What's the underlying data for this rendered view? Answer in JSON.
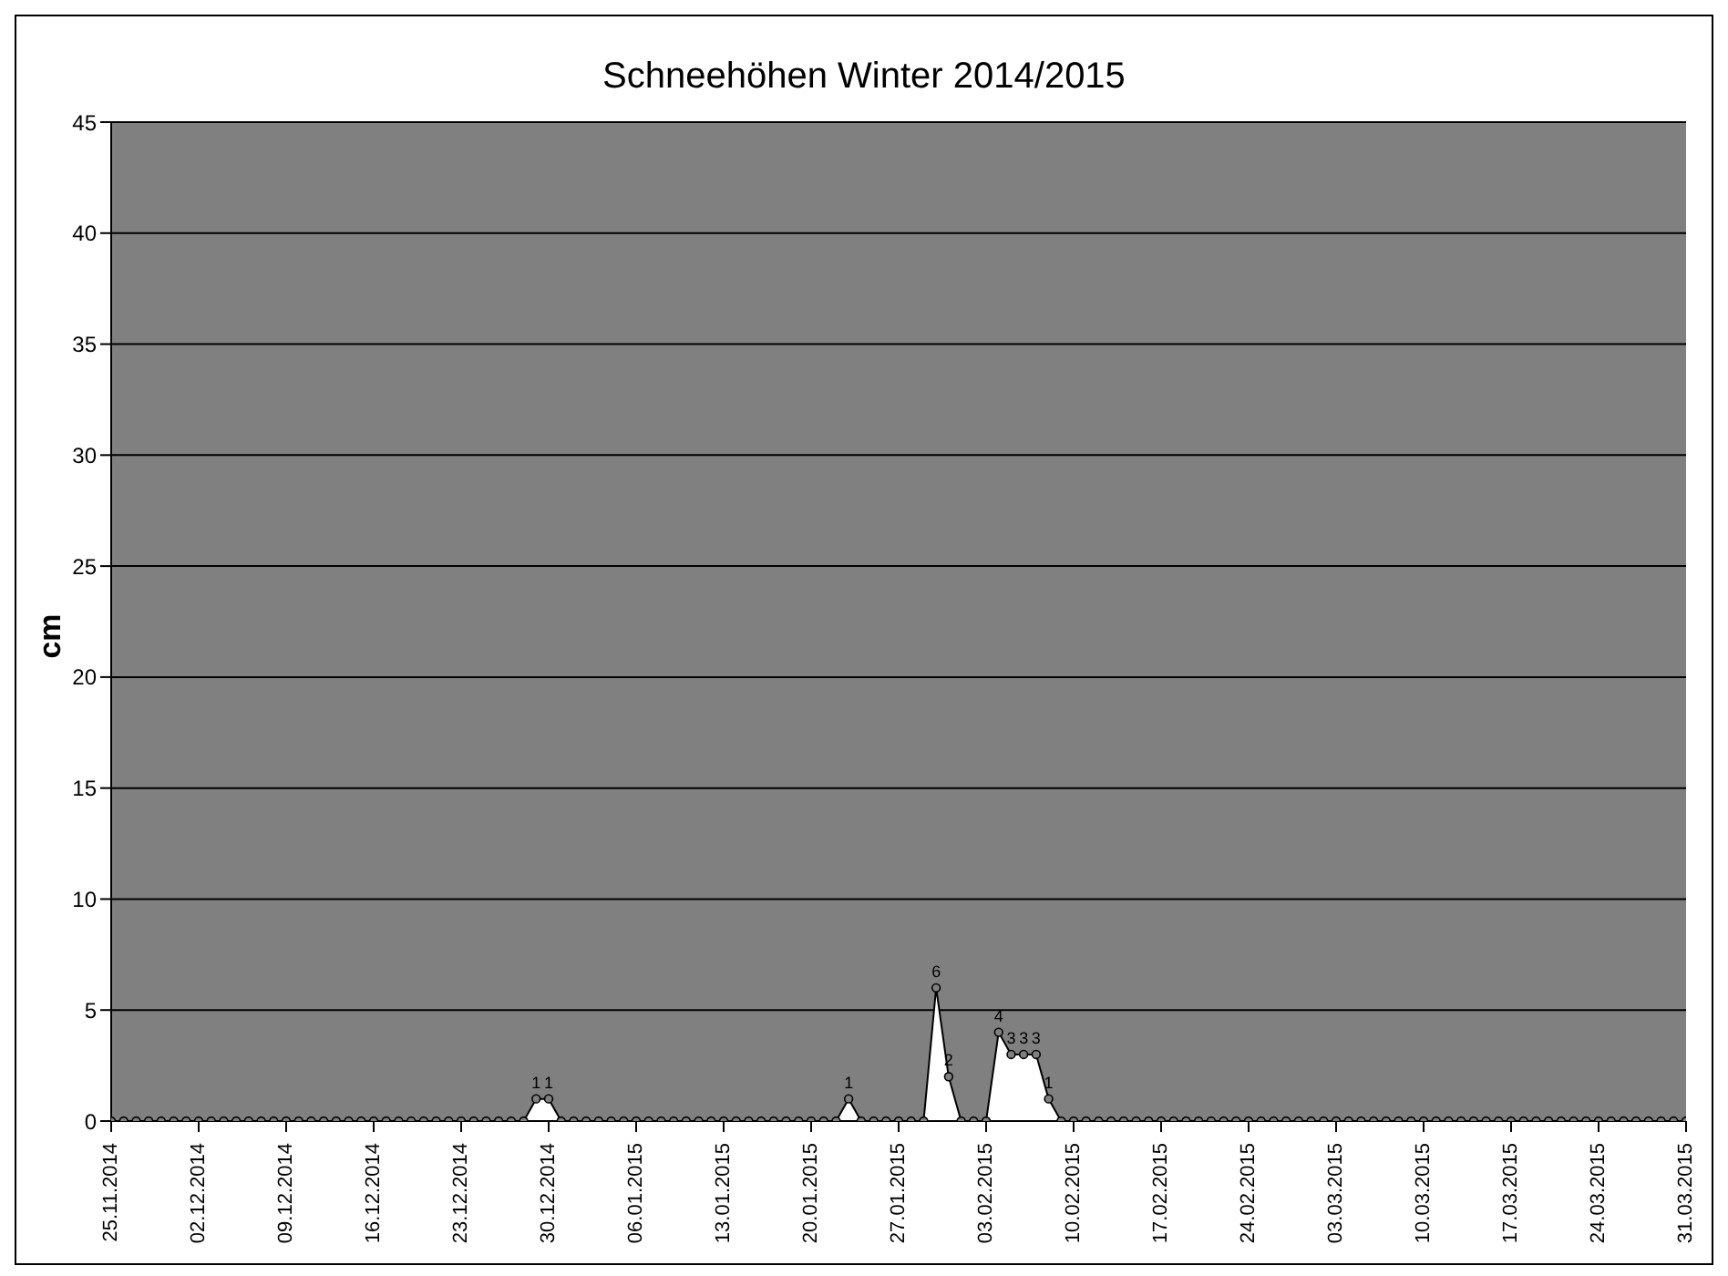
{
  "chart_data": {
    "type": "area",
    "title": "Schneehöhen Winter 2014/2015",
    "ylabel": "cm",
    "categories": [
      "25.11.2014",
      null,
      null,
      null,
      null,
      null,
      null,
      "02.12.2014",
      null,
      null,
      null,
      null,
      null,
      null,
      "09.12.2014",
      null,
      null,
      null,
      null,
      null,
      null,
      "16.12.2014",
      null,
      null,
      null,
      null,
      null,
      null,
      "23.12.2014",
      null,
      null,
      null,
      null,
      null,
      null,
      "30.12.2014",
      null,
      null,
      null,
      null,
      null,
      null,
      "06.01.2015",
      null,
      null,
      null,
      null,
      null,
      null,
      "13.01.2015",
      null,
      null,
      null,
      null,
      null,
      null,
      "20.01.2015",
      null,
      null,
      null,
      null,
      null,
      null,
      "27.01.2015",
      null,
      null,
      null,
      null,
      null,
      null,
      "03.02.2015",
      null,
      null,
      null,
      null,
      null,
      null,
      "10.02.2015",
      null,
      null,
      null,
      null,
      null,
      null,
      "17.02.2015",
      null,
      null,
      null,
      null,
      null,
      null,
      "24.02.2015",
      null,
      null,
      null,
      null,
      null,
      null,
      "03.03.2015",
      null,
      null,
      null,
      null,
      null,
      null,
      "10.03.2015",
      null,
      null,
      null,
      null,
      null,
      null,
      "17.03.2015",
      null,
      null,
      null,
      null,
      null,
      null,
      "24.03.2015",
      null,
      null,
      null,
      null,
      null,
      null,
      "31.03.2015"
    ],
    "values": [
      0,
      0,
      0,
      0,
      0,
      0,
      0,
      0,
      0,
      0,
      0,
      0,
      0,
      0,
      0,
      0,
      0,
      0,
      0,
      0,
      0,
      0,
      0,
      0,
      0,
      0,
      0,
      0,
      0,
      0,
      0,
      0,
      0,
      0,
      1,
      1,
      0,
      0,
      0,
      0,
      0,
      0,
      0,
      0,
      0,
      0,
      0,
      0,
      0,
      0,
      0,
      0,
      0,
      0,
      0,
      0,
      0,
      0,
      0,
      1,
      0,
      0,
      0,
      0,
      0,
      0,
      6,
      2,
      0,
      0,
      0,
      4,
      3,
      3,
      3,
      1,
      0,
      0,
      0,
      0,
      0,
      0,
      0,
      0,
      0,
      0,
      0,
      0,
      0,
      0,
      0,
      0,
      0,
      0,
      0,
      0,
      0,
      0,
      0,
      0,
      0,
      0,
      0,
      0,
      0,
      0,
      0,
      0,
      0,
      0,
      0,
      0,
      0,
      0,
      0,
      0,
      0,
      0,
      0,
      0,
      0,
      0,
      0,
      0,
      0,
      0,
      0
    ],
    "value_labels": [
      null,
      null,
      null,
      null,
      null,
      null,
      null,
      null,
      null,
      null,
      null,
      null,
      null,
      null,
      null,
      null,
      null,
      null,
      null,
      null,
      null,
      null,
      null,
      null,
      null,
      null,
      null,
      null,
      null,
      null,
      null,
      null,
      null,
      null,
      "1",
      "1",
      null,
      null,
      null,
      null,
      null,
      null,
      null,
      null,
      null,
      null,
      null,
      null,
      null,
      null,
      null,
      null,
      null,
      null,
      null,
      null,
      null,
      null,
      null,
      "1",
      null,
      null,
      null,
      null,
      null,
      null,
      "6",
      "2",
      null,
      null,
      null,
      "4",
      "3",
      "3",
      "3",
      "1",
      null,
      null,
      null,
      null,
      null,
      null,
      null,
      null,
      null,
      null,
      null,
      null,
      null,
      null,
      null,
      null,
      null,
      null,
      null,
      null,
      null,
      null,
      null,
      null,
      null,
      null,
      null,
      null,
      null,
      null,
      null,
      null,
      null,
      null,
      null,
      null,
      null,
      null,
      null,
      null,
      null,
      null,
      null,
      null,
      null,
      null,
      null,
      null,
      null,
      null,
      null
    ],
    "color": "#ffffff",
    "ylim": [
      0,
      45
    ],
    "yticks": [
      0,
      5,
      10,
      15,
      20,
      25,
      30,
      35,
      40,
      45
    ],
    "grid": "y",
    "marker": "circle"
  }
}
